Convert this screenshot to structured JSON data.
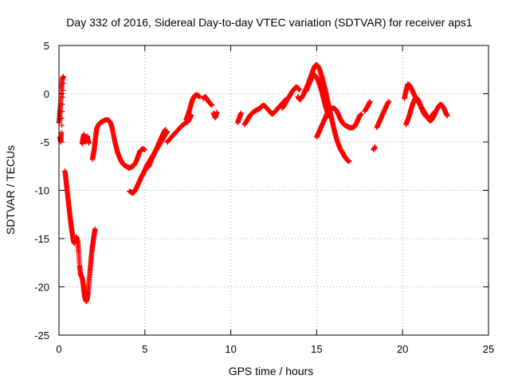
{
  "chart_data": {
    "type": "scatter",
    "title": "Day 332 of 2016, Sidereal Day-to-day VTEC variation (SDTVAR) for receiver aps1",
    "xlabel": "GPS time / hours",
    "ylabel": "SDTVAR / TECUs",
    "xlim": [
      0,
      25
    ],
    "ylim": [
      -25,
      5
    ],
    "xticks": [
      0,
      5,
      10,
      15,
      20,
      25
    ],
    "yticks": [
      -25,
      -20,
      -15,
      -10,
      -5,
      0,
      5
    ],
    "grid": true,
    "marker": "plus",
    "color": "#ff0000",
    "segments": [
      [
        [
          0.0,
          -3.0
        ],
        [
          0.05,
          -2.0
        ],
        [
          0.1,
          -1.0
        ],
        [
          0.15,
          0.5
        ],
        [
          0.2,
          1.5
        ],
        [
          0.25,
          1.8
        ],
        [
          0.15,
          -4.0
        ],
        [
          0.1,
          -5.0
        ],
        [
          0.05,
          -4.5
        ]
      ],
      [
        [
          0.35,
          -8.0
        ],
        [
          0.4,
          -8.8
        ],
        [
          0.45,
          -9.6
        ],
        [
          0.5,
          -10.4
        ],
        [
          0.55,
          -11.2
        ],
        [
          0.6,
          -12.0
        ],
        [
          0.65,
          -12.8
        ],
        [
          0.7,
          -13.5
        ],
        [
          0.75,
          -14.2
        ],
        [
          0.8,
          -14.8
        ],
        [
          0.85,
          -15.3
        ],
        [
          0.9,
          -15.5
        ],
        [
          0.95,
          -15.2
        ],
        [
          1.0,
          -14.8
        ],
        [
          1.05,
          -15.0
        ],
        [
          1.1,
          -15.4
        ],
        [
          1.15,
          -16.5
        ],
        [
          1.2,
          -17.8
        ],
        [
          1.25,
          -18.6
        ],
        [
          1.3,
          -18.9
        ],
        [
          1.35,
          -19.0
        ],
        [
          1.4,
          -19.6
        ],
        [
          1.45,
          -20.4
        ],
        [
          1.5,
          -21.0
        ],
        [
          1.55,
          -21.4
        ],
        [
          1.6,
          -21.5
        ],
        [
          1.65,
          -21.2
        ],
        [
          1.7,
          -20.5
        ],
        [
          1.75,
          -19.5
        ],
        [
          1.8,
          -18.5
        ],
        [
          1.85,
          -17.5
        ],
        [
          1.9,
          -16.5
        ],
        [
          1.95,
          -15.8
        ],
        [
          2.0,
          -15.2
        ],
        [
          2.05,
          -14.6
        ],
        [
          2.1,
          -14.0
        ]
      ],
      [
        [
          1.35,
          -5.2
        ],
        [
          1.4,
          -4.6
        ],
        [
          1.45,
          -4.2
        ],
        [
          1.5,
          -4.8
        ],
        [
          1.55,
          -5.0
        ],
        [
          1.6,
          -4.7
        ],
        [
          1.65,
          -4.4
        ],
        [
          1.7,
          -4.9
        ],
        [
          1.75,
          -5.1
        ]
      ],
      [
        [
          1.95,
          -6.8
        ],
        [
          2.0,
          -6.3
        ],
        [
          2.05,
          -5.8
        ],
        [
          2.1,
          -5.0
        ],
        [
          2.15,
          -4.2
        ],
        [
          2.2,
          -3.6
        ],
        [
          2.3,
          -3.2
        ],
        [
          2.4,
          -3.0
        ],
        [
          2.5,
          -2.9
        ],
        [
          2.6,
          -2.8
        ],
        [
          2.7,
          -2.7
        ],
        [
          2.8,
          -2.7
        ],
        [
          2.9,
          -2.75
        ],
        [
          3.0,
          -3.0
        ],
        [
          3.1,
          -3.6
        ],
        [
          3.2,
          -4.5
        ],
        [
          3.3,
          -5.3
        ],
        [
          3.4,
          -6.0
        ],
        [
          3.5,
          -6.5
        ],
        [
          3.6,
          -6.9
        ],
        [
          3.7,
          -7.2
        ],
        [
          3.8,
          -7.4
        ],
        [
          3.9,
          -7.5
        ],
        [
          4.0,
          -7.6
        ],
        [
          4.1,
          -7.7
        ],
        [
          4.2,
          -7.6
        ],
        [
          4.3,
          -7.5
        ],
        [
          4.4,
          -7.3
        ],
        [
          4.5,
          -7.0
        ],
        [
          4.6,
          -6.5
        ],
        [
          4.7,
          -6.0
        ],
        [
          4.8,
          -5.8
        ],
        [
          4.9,
          -5.7
        ],
        [
          5.0,
          -5.8
        ]
      ],
      [
        [
          4.1,
          -10.1
        ],
        [
          4.2,
          -10.2
        ],
        [
          4.3,
          -10.3
        ],
        [
          4.4,
          -10.1
        ],
        [
          4.5,
          -9.8
        ],
        [
          4.6,
          -9.4
        ],
        [
          4.7,
          -9.0
        ],
        [
          4.8,
          -8.6
        ],
        [
          4.9,
          -8.3
        ],
        [
          5.0,
          -7.9
        ],
        [
          5.1,
          -7.5
        ],
        [
          5.2,
          -7.2
        ],
        [
          5.3,
          -6.9
        ],
        [
          5.4,
          -6.6
        ],
        [
          5.5,
          -6.3
        ],
        [
          5.6,
          -6.0
        ],
        [
          5.7,
          -5.7
        ],
        [
          5.8,
          -5.4
        ],
        [
          5.9,
          -5.1
        ],
        [
          6.0,
          -4.8
        ],
        [
          6.1,
          -4.5
        ],
        [
          6.2,
          -4.2
        ],
        [
          6.3,
          -3.9
        ]
      ],
      [
        [
          5.2,
          -7.6
        ],
        [
          5.3,
          -7.2
        ],
        [
          5.4,
          -6.8
        ],
        [
          5.5,
          -6.4
        ],
        [
          5.6,
          -6.0
        ],
        [
          5.7,
          -5.6
        ],
        [
          5.8,
          -5.2
        ],
        [
          5.9,
          -4.8
        ],
        [
          6.0,
          -4.4
        ],
        [
          6.1,
          -4.0
        ],
        [
          6.2,
          -3.7
        ]
      ],
      [
        [
          6.3,
          -5.0
        ],
        [
          6.5,
          -4.6
        ],
        [
          6.7,
          -4.2
        ],
        [
          6.9,
          -3.8
        ],
        [
          7.1,
          -3.4
        ],
        [
          7.3,
          -3.1
        ],
        [
          7.5,
          -2.9
        ],
        [
          7.6,
          -2.6
        ],
        [
          7.7,
          -2.2
        ]
      ],
      [
        [
          7.4,
          -2.7
        ],
        [
          7.5,
          -2.2
        ],
        [
          7.6,
          -1.7
        ],
        [
          7.7,
          -1.0
        ],
        [
          7.8,
          -0.5
        ],
        [
          7.9,
          -0.2
        ],
        [
          8.0,
          -0.1
        ],
        [
          8.1,
          -0.2
        ],
        [
          8.2,
          -0.3
        ]
      ],
      [
        [
          8.4,
          -0.5
        ],
        [
          8.5,
          -0.3
        ],
        [
          8.6,
          -0.5
        ],
        [
          8.7,
          -0.8
        ],
        [
          8.8,
          -1.0
        ],
        [
          8.9,
          -1.2
        ]
      ],
      [
        [
          9.0,
          -2.0
        ],
        [
          9.1,
          -2.5
        ],
        [
          9.2,
          -1.9
        ]
      ],
      [
        [
          10.4,
          -3.0
        ],
        [
          10.5,
          -2.5
        ],
        [
          10.6,
          -2.0
        ]
      ],
      [
        [
          10.8,
          -3.2
        ],
        [
          10.9,
          -2.9
        ],
        [
          11.0,
          -2.6
        ],
        [
          11.1,
          -2.3
        ],
        [
          11.2,
          -2.1
        ],
        [
          11.3,
          -1.9
        ],
        [
          11.4,
          -1.8
        ],
        [
          11.5,
          -1.7
        ],
        [
          11.6,
          -1.6
        ],
        [
          11.7,
          -1.5
        ],
        [
          11.8,
          -1.3
        ],
        [
          11.9,
          -1.2
        ],
        [
          12.0,
          -1.3
        ],
        [
          12.1,
          -1.5
        ],
        [
          12.2,
          -1.7
        ],
        [
          12.3,
          -1.9
        ],
        [
          12.4,
          -2.1
        ],
        [
          12.5,
          -2.0
        ],
        [
          12.6,
          -1.8
        ],
        [
          12.7,
          -1.6
        ],
        [
          12.8,
          -1.4
        ],
        [
          12.9,
          -1.2
        ],
        [
          13.0,
          -1.0
        ],
        [
          13.1,
          -0.8
        ],
        [
          13.2,
          -0.6
        ]
      ],
      [
        [
          13.0,
          -1.5
        ],
        [
          13.1,
          -1.2
        ],
        [
          13.2,
          -0.9
        ],
        [
          13.3,
          -0.6
        ],
        [
          13.4,
          -0.3
        ],
        [
          13.5,
          0.0
        ],
        [
          13.6,
          0.3
        ],
        [
          13.7,
          0.5
        ],
        [
          13.8,
          0.7
        ],
        [
          13.9,
          0.6
        ],
        [
          14.0,
          0.4
        ]
      ],
      [
        [
          13.9,
          -0.3
        ],
        [
          14.0,
          -0.6
        ],
        [
          14.1,
          -0.5
        ],
        [
          14.2,
          -0.2
        ],
        [
          14.3,
          0.2
        ],
        [
          14.4,
          0.6
        ],
        [
          14.5,
          1.0
        ],
        [
          14.6,
          1.5
        ],
        [
          14.7,
          2.0
        ],
        [
          14.8,
          2.5
        ],
        [
          14.9,
          2.9
        ],
        [
          15.0,
          3.0
        ],
        [
          15.1,
          2.8
        ],
        [
          15.2,
          2.4
        ],
        [
          15.3,
          1.8
        ],
        [
          15.4,
          1.1
        ],
        [
          15.5,
          0.4
        ],
        [
          15.6,
          -0.4
        ],
        [
          15.7,
          -1.2
        ],
        [
          15.8,
          -2.0
        ],
        [
          15.9,
          -2.8
        ],
        [
          16.0,
          -3.6
        ],
        [
          16.1,
          -4.3
        ],
        [
          16.2,
          -4.9
        ],
        [
          16.3,
          -5.4
        ],
        [
          16.4,
          -5.8
        ],
        [
          16.5,
          -6.1
        ],
        [
          16.6,
          -6.4
        ],
        [
          16.7,
          -6.7
        ],
        [
          16.8,
          -6.9
        ],
        [
          16.9,
          -7.0
        ]
      ],
      [
        [
          14.4,
          0.3
        ],
        [
          14.5,
          0.8
        ],
        [
          14.6,
          1.2
        ],
        [
          14.7,
          1.6
        ],
        [
          14.8,
          1.8
        ],
        [
          14.9,
          1.9
        ],
        [
          15.0,
          1.7
        ],
        [
          15.1,
          1.3
        ],
        [
          15.2,
          0.8
        ],
        [
          15.3,
          0.2
        ],
        [
          15.4,
          -0.5
        ],
        [
          15.5,
          -1.2
        ],
        [
          15.6,
          -1.8
        ],
        [
          15.7,
          -2.3
        ]
      ],
      [
        [
          15.0,
          -4.5
        ],
        [
          15.1,
          -4.1
        ],
        [
          15.2,
          -3.7
        ],
        [
          15.3,
          -3.3
        ],
        [
          15.4,
          -2.9
        ],
        [
          15.5,
          -2.5
        ],
        [
          15.6,
          -2.1
        ],
        [
          15.7,
          -1.8
        ],
        [
          15.8,
          -1.6
        ],
        [
          15.9,
          -1.5
        ],
        [
          16.0,
          -1.5
        ],
        [
          16.1,
          -1.6
        ],
        [
          16.2,
          -1.9
        ],
        [
          16.3,
          -2.3
        ],
        [
          16.4,
          -2.7
        ],
        [
          16.5,
          -3.0
        ],
        [
          16.6,
          -3.2
        ],
        [
          16.7,
          -3.3
        ],
        [
          16.8,
          -3.4
        ],
        [
          16.9,
          -3.5
        ],
        [
          17.0,
          -3.5
        ],
        [
          17.1,
          -3.5
        ],
        [
          17.2,
          -3.4
        ],
        [
          17.3,
          -3.1
        ],
        [
          17.4,
          -2.7
        ],
        [
          17.5,
          -2.3
        ],
        [
          17.6,
          -2.1
        ]
      ],
      [
        [
          17.8,
          -1.8
        ],
        [
          17.9,
          -1.5
        ],
        [
          18.0,
          -1.2
        ],
        [
          18.1,
          -0.8
        ]
      ],
      [
        [
          18.3,
          -5.8
        ],
        [
          18.4,
          -5.5
        ]
      ],
      [
        [
          18.5,
          -3.5
        ],
        [
          18.6,
          -3.1
        ],
        [
          18.7,
          -2.7
        ],
        [
          18.8,
          -2.3
        ],
        [
          18.9,
          -1.9
        ],
        [
          19.0,
          -1.5
        ],
        [
          19.1,
          -1.1
        ],
        [
          19.2,
          -0.8
        ]
      ],
      [
        [
          20.1,
          -0.5
        ],
        [
          20.2,
          0.3
        ],
        [
          20.3,
          1.0
        ],
        [
          20.4,
          0.9
        ],
        [
          20.5,
          0.6
        ],
        [
          20.6,
          0.2
        ],
        [
          20.7,
          -0.2
        ],
        [
          20.8,
          -0.5
        ],
        [
          20.9,
          -0.8
        ],
        [
          21.0,
          -1.1
        ],
        [
          21.1,
          -1.4
        ],
        [
          21.2,
          -1.7
        ],
        [
          21.3,
          -2.0
        ],
        [
          21.4,
          -2.3
        ],
        [
          21.5,
          -2.6
        ],
        [
          21.6,
          -2.8
        ],
        [
          21.7,
          -2.7
        ],
        [
          21.8,
          -2.4
        ],
        [
          21.9,
          -2.0
        ],
        [
          22.0,
          -1.6
        ],
        [
          22.1,
          -1.3
        ],
        [
          22.2,
          -1.1
        ],
        [
          22.3,
          -1.2
        ],
        [
          22.4,
          -1.5
        ],
        [
          22.5,
          -1.9
        ],
        [
          22.6,
          -2.3
        ]
      ],
      [
        [
          20.2,
          -3.2
        ],
        [
          20.3,
          -2.7
        ],
        [
          20.4,
          -2.2
        ],
        [
          20.5,
          -1.6
        ],
        [
          20.6,
          -1.0
        ],
        [
          20.7,
          -0.6
        ],
        [
          20.8,
          -0.4
        ],
        [
          20.9,
          -0.6
        ],
        [
          21.0,
          -1.0
        ],
        [
          21.1,
          -1.5
        ],
        [
          21.2,
          -1.9
        ],
        [
          21.3,
          -2.2
        ],
        [
          21.4,
          -2.4
        ],
        [
          21.5,
          -2.5
        ],
        [
          21.6,
          -2.5
        ],
        [
          21.7,
          -2.3
        ],
        [
          21.8,
          -2.0
        ]
      ]
    ]
  }
}
